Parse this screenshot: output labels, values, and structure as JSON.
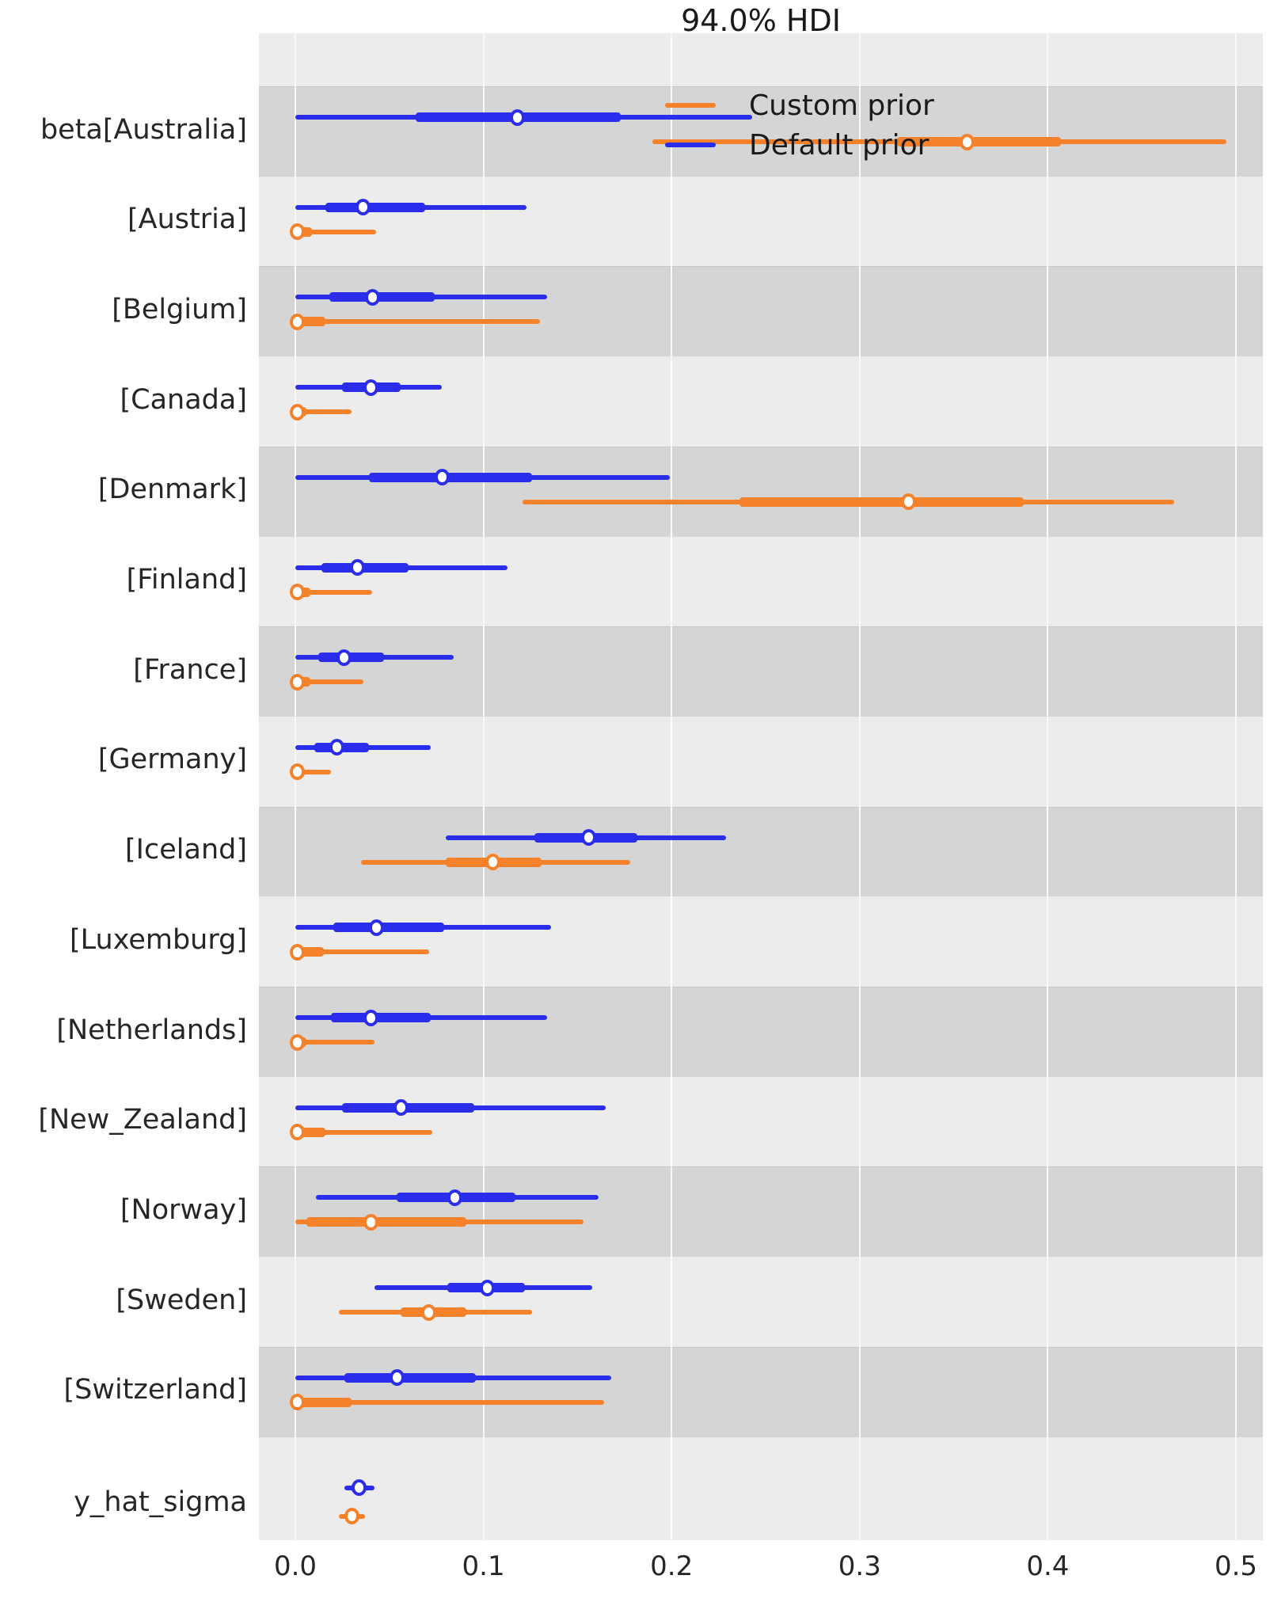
{
  "title": "94.0% HDI",
  "legend": {
    "items": [
      {
        "label": "Custom prior",
        "color": "#f5822a"
      },
      {
        "label": "Default prior",
        "color": "#2a2eec"
      }
    ]
  },
  "colors": {
    "custom_prior": "#f5822a",
    "default_prior": "#2a2eec",
    "band_dark": "#d5d5d5",
    "band_light": "#ececec",
    "gridline": "#fafafa"
  },
  "chart_data": {
    "type": "forest",
    "title": "94.0% HDI",
    "hdi_prob": "94.0%",
    "xlabel": "",
    "xlim": [
      -0.02,
      0.515
    ],
    "x_ticks": [
      {
        "value": 0.0,
        "label": "0.0"
      },
      {
        "value": 0.1,
        "label": "0.1"
      },
      {
        "value": 0.2,
        "label": "0.2"
      },
      {
        "value": 0.3,
        "label": "0.3"
      },
      {
        "value": 0.4,
        "label": "0.4"
      },
      {
        "value": 0.5,
        "label": "0.5"
      }
    ],
    "legend_position": "upper right inside",
    "grid": "vertical white on gray bands",
    "series_names": [
      "Custom prior",
      "Default prior"
    ],
    "rows": [
      {
        "label": "beta[Australia]",
        "default_prior": {
          "lo": 0.0,
          "thick_lo": 0.064,
          "median": 0.118,
          "thick_hi": 0.173,
          "hi": 0.243
        },
        "custom_prior": {
          "lo": 0.19,
          "thick_lo": 0.32,
          "median": 0.357,
          "thick_hi": 0.407,
          "hi": 0.495
        }
      },
      {
        "label": "[Austria]",
        "default_prior": {
          "lo": 0.0,
          "thick_lo": 0.016,
          "median": 0.036,
          "thick_hi": 0.069,
          "hi": 0.123
        },
        "custom_prior": {
          "lo": 0.0,
          "thick_lo": 0.0,
          "median": 0.001,
          "thick_hi": 0.009,
          "hi": 0.043
        }
      },
      {
        "label": "[Belgium]",
        "default_prior": {
          "lo": 0.0,
          "thick_lo": 0.018,
          "median": 0.041,
          "thick_hi": 0.074,
          "hi": 0.134
        },
        "custom_prior": {
          "lo": 0.0,
          "thick_lo": 0.0,
          "median": 0.001,
          "thick_hi": 0.016,
          "hi": 0.13
        }
      },
      {
        "label": "[Canada]",
        "default_prior": {
          "lo": 0.0,
          "thick_lo": 0.025,
          "median": 0.04,
          "thick_hi": 0.056,
          "hi": 0.078
        },
        "custom_prior": {
          "lo": 0.0,
          "thick_lo": 0.0,
          "median": 0.001,
          "thick_hi": 0.006,
          "hi": 0.03
        }
      },
      {
        "label": "[Denmark]",
        "default_prior": {
          "lo": 0.0,
          "thick_lo": 0.039,
          "median": 0.078,
          "thick_hi": 0.126,
          "hi": 0.199
        },
        "custom_prior": {
          "lo": 0.121,
          "thick_lo": 0.236,
          "median": 0.326,
          "thick_hi": 0.387,
          "hi": 0.467
        }
      },
      {
        "label": "[Finland]",
        "default_prior": {
          "lo": 0.0,
          "thick_lo": 0.014,
          "median": 0.033,
          "thick_hi": 0.06,
          "hi": 0.113
        },
        "custom_prior": {
          "lo": 0.0,
          "thick_lo": 0.0,
          "median": 0.001,
          "thick_hi": 0.008,
          "hi": 0.041
        }
      },
      {
        "label": "[France]",
        "default_prior": {
          "lo": 0.0,
          "thick_lo": 0.012,
          "median": 0.026,
          "thick_hi": 0.047,
          "hi": 0.084
        },
        "custom_prior": {
          "lo": 0.0,
          "thick_lo": 0.0,
          "median": 0.001,
          "thick_hi": 0.008,
          "hi": 0.036
        }
      },
      {
        "label": "[Germany]",
        "default_prior": {
          "lo": 0.0,
          "thick_lo": 0.01,
          "median": 0.022,
          "thick_hi": 0.039,
          "hi": 0.072
        },
        "custom_prior": {
          "lo": 0.0,
          "thick_lo": 0.0,
          "median": 0.001,
          "thick_hi": 0.005,
          "hi": 0.019
        }
      },
      {
        "label": "[Iceland]",
        "default_prior": {
          "lo": 0.08,
          "thick_lo": 0.127,
          "median": 0.156,
          "thick_hi": 0.182,
          "hi": 0.229
        },
        "custom_prior": {
          "lo": 0.035,
          "thick_lo": 0.08,
          "median": 0.105,
          "thick_hi": 0.131,
          "hi": 0.178
        }
      },
      {
        "label": "[Luxemburg]",
        "default_prior": {
          "lo": 0.0,
          "thick_lo": 0.02,
          "median": 0.043,
          "thick_hi": 0.079,
          "hi": 0.136
        },
        "custom_prior": {
          "lo": 0.0,
          "thick_lo": 0.0,
          "median": 0.001,
          "thick_hi": 0.015,
          "hi": 0.071
        }
      },
      {
        "label": "[Netherlands]",
        "default_prior": {
          "lo": 0.0,
          "thick_lo": 0.019,
          "median": 0.04,
          "thick_hi": 0.072,
          "hi": 0.134
        },
        "custom_prior": {
          "lo": 0.0,
          "thick_lo": 0.0,
          "median": 0.001,
          "thick_hi": 0.006,
          "hi": 0.042
        }
      },
      {
        "label": "[New_Zealand]",
        "default_prior": {
          "lo": 0.0,
          "thick_lo": 0.025,
          "median": 0.056,
          "thick_hi": 0.095,
          "hi": 0.165
        },
        "custom_prior": {
          "lo": 0.0,
          "thick_lo": 0.0,
          "median": 0.001,
          "thick_hi": 0.016,
          "hi": 0.073
        }
      },
      {
        "label": "[Norway]",
        "default_prior": {
          "lo": 0.011,
          "thick_lo": 0.054,
          "median": 0.085,
          "thick_hi": 0.117,
          "hi": 0.161
        },
        "custom_prior": {
          "lo": 0.0,
          "thick_lo": 0.006,
          "median": 0.04,
          "thick_hi": 0.091,
          "hi": 0.153
        }
      },
      {
        "label": "[Sweden]",
        "default_prior": {
          "lo": 0.042,
          "thick_lo": 0.081,
          "median": 0.102,
          "thick_hi": 0.122,
          "hi": 0.158
        },
        "custom_prior": {
          "lo": 0.023,
          "thick_lo": 0.056,
          "median": 0.071,
          "thick_hi": 0.091,
          "hi": 0.126
        }
      },
      {
        "label": "[Switzerland]",
        "default_prior": {
          "lo": 0.0,
          "thick_lo": 0.026,
          "median": 0.054,
          "thick_hi": 0.096,
          "hi": 0.168
        },
        "custom_prior": {
          "lo": 0.0,
          "thick_lo": 0.0,
          "median": 0.001,
          "thick_hi": 0.03,
          "hi": 0.164
        }
      },
      {
        "label": "y_hat_sigma",
        "default_prior": {
          "lo": 0.026,
          "thick_lo": 0.03,
          "median": 0.034,
          "thick_hi": 0.037,
          "hi": 0.042
        },
        "custom_prior": {
          "lo": 0.023,
          "thick_lo": 0.027,
          "median": 0.03,
          "thick_hi": 0.033,
          "hi": 0.037
        }
      }
    ]
  }
}
